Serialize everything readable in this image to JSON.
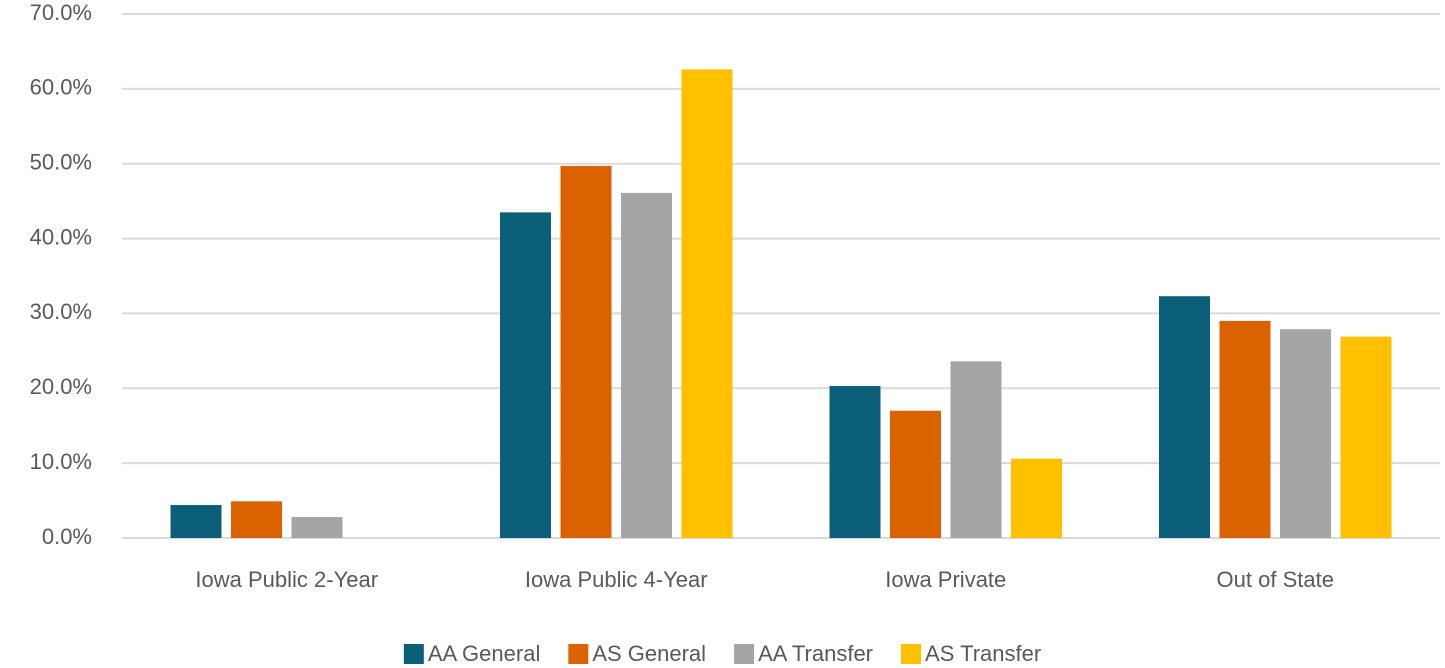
{
  "chart_data": {
    "type": "bar",
    "categories": [
      "Iowa Public 2-Year",
      "Iowa Public 4-Year",
      "Iowa Private",
      "Out of State"
    ],
    "series": [
      {
        "name": "AA General",
        "color": "#0b5f78",
        "values": [
          4.4,
          43.5,
          20.3,
          32.3
        ]
      },
      {
        "name": "AS General",
        "color": "#db6200",
        "values": [
          4.9,
          49.7,
          17.0,
          29.0
        ]
      },
      {
        "name": "AA Transfer",
        "color": "#a5a5a5",
        "values": [
          2.8,
          46.1,
          23.6,
          27.9
        ]
      },
      {
        "name": "AS Transfer",
        "color": "#ffc000",
        "values": [
          0,
          62.6,
          10.6,
          26.9
        ]
      }
    ],
    "ylim": [
      0,
      70
    ],
    "yticks": [
      {
        "value": 0,
        "label": "0.0%"
      },
      {
        "value": 10,
        "label": "10.0%"
      },
      {
        "value": 20,
        "label": "20.0%"
      },
      {
        "value": 30,
        "label": "30.0%"
      },
      {
        "value": 40,
        "label": "40.0%"
      },
      {
        "value": 50,
        "label": "50.0%"
      },
      {
        "value": 60,
        "label": "60.0%"
      },
      {
        "value": 70,
        "label": "70.0%"
      }
    ],
    "grid": true,
    "legend": "bottom"
  }
}
